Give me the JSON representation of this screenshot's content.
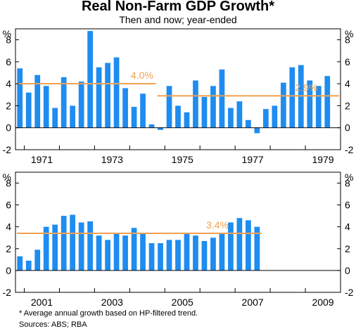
{
  "title": "Real Non-Farm GDP Growth*",
  "subtitle": "Then and now; year-ended",
  "footnote": "*  Average annual growth based on HP-filtered trend.",
  "sources": "Sources: ABS; RBA",
  "colors": {
    "bar": "#1e8cf0",
    "trend": "#f0a050",
    "text": "#000000",
    "border": "#000000"
  },
  "chart_data": [
    {
      "type": "bar",
      "unit": "%",
      "ylim": [
        -2,
        9
      ],
      "yticks": [
        -2,
        0,
        2,
        4,
        6,
        8
      ],
      "xlim": [
        1970.75,
        1979.75
      ],
      "xticks": [
        {
          "x": 1971,
          "label": "1971"
        },
        {
          "x": 1973,
          "label": "1973"
        },
        {
          "x": 1975,
          "label": "1975"
        },
        {
          "x": 1977,
          "label": "1977"
        },
        {
          "x": 1979,
          "label": "1979"
        }
      ],
      "x": [
        1970.75,
        1971.0,
        1971.25,
        1971.5,
        1971.75,
        1972.0,
        1972.25,
        1972.5,
        1972.75,
        1973.0,
        1973.25,
        1973.5,
        1973.75,
        1974.0,
        1974.25,
        1974.5,
        1974.75,
        1975.0,
        1975.25,
        1975.5,
        1975.75,
        1976.0,
        1976.25,
        1976.5,
        1976.75,
        1977.0,
        1977.25,
        1977.5,
        1977.75,
        1978.0,
        1978.25,
        1978.5,
        1978.75,
        1979.0,
        1979.25,
        1979.5
      ],
      "values": [
        5.4,
        3.2,
        4.8,
        3.8,
        1.8,
        4.6,
        2.0,
        4.2,
        8.8,
        5.5,
        5.9,
        6.4,
        3.6,
        1.9,
        3.1,
        0.3,
        -0.2,
        3.8,
        2.0,
        1.4,
        4.3,
        2.8,
        3.8,
        5.3,
        1.8,
        2.4,
        0.7,
        -0.5,
        1.7,
        2.0,
        4.1,
        5.5,
        5.7,
        4.3,
        3.8,
        4.7
      ],
      "trends": [
        {
          "label": "4.0%",
          "value": 4.0,
          "x_start": 1970.75,
          "x_end": 1974.5
        },
        {
          "label": "2.9%",
          "value": 2.9,
          "x_start": 1974.75,
          "x_end": 1979.75
        }
      ]
    },
    {
      "type": "bar",
      "unit": "%",
      "ylim": [
        -2,
        9
      ],
      "yticks": [
        -2,
        0,
        2,
        4,
        6,
        8
      ],
      "xlim": [
        2000.75,
        2009.75
      ],
      "xticks": [
        {
          "x": 2001,
          "label": "2001"
        },
        {
          "x": 2003,
          "label": "2003"
        },
        {
          "x": 2005,
          "label": "2005"
        },
        {
          "x": 2007,
          "label": "2007"
        },
        {
          "x": 2009,
          "label": "2009"
        }
      ],
      "x": [
        2000.75,
        2001.0,
        2001.25,
        2001.5,
        2001.75,
        2002.0,
        2002.25,
        2002.5,
        2002.75,
        2003.0,
        2003.25,
        2003.5,
        2003.75,
        2004.0,
        2004.25,
        2004.5,
        2004.75,
        2005.0,
        2005.25,
        2005.5,
        2005.75,
        2006.0,
        2006.25,
        2006.5,
        2006.75,
        2007.0,
        2007.25,
        2007.5
      ],
      "values": [
        1.3,
        0.9,
        1.9,
        4.0,
        4.2,
        5.0,
        5.1,
        4.4,
        4.5,
        3.2,
        2.8,
        3.4,
        3.2,
        3.9,
        3.4,
        2.5,
        2.5,
        2.8,
        2.8,
        3.4,
        3.2,
        2.7,
        3.0,
        3.4,
        4.4,
        4.8,
        4.6,
        4.0
      ],
      "trends": [
        {
          "label": "3.4%",
          "value": 3.4,
          "x_start": 2000.75,
          "x_end": 2007.5
        }
      ]
    }
  ]
}
